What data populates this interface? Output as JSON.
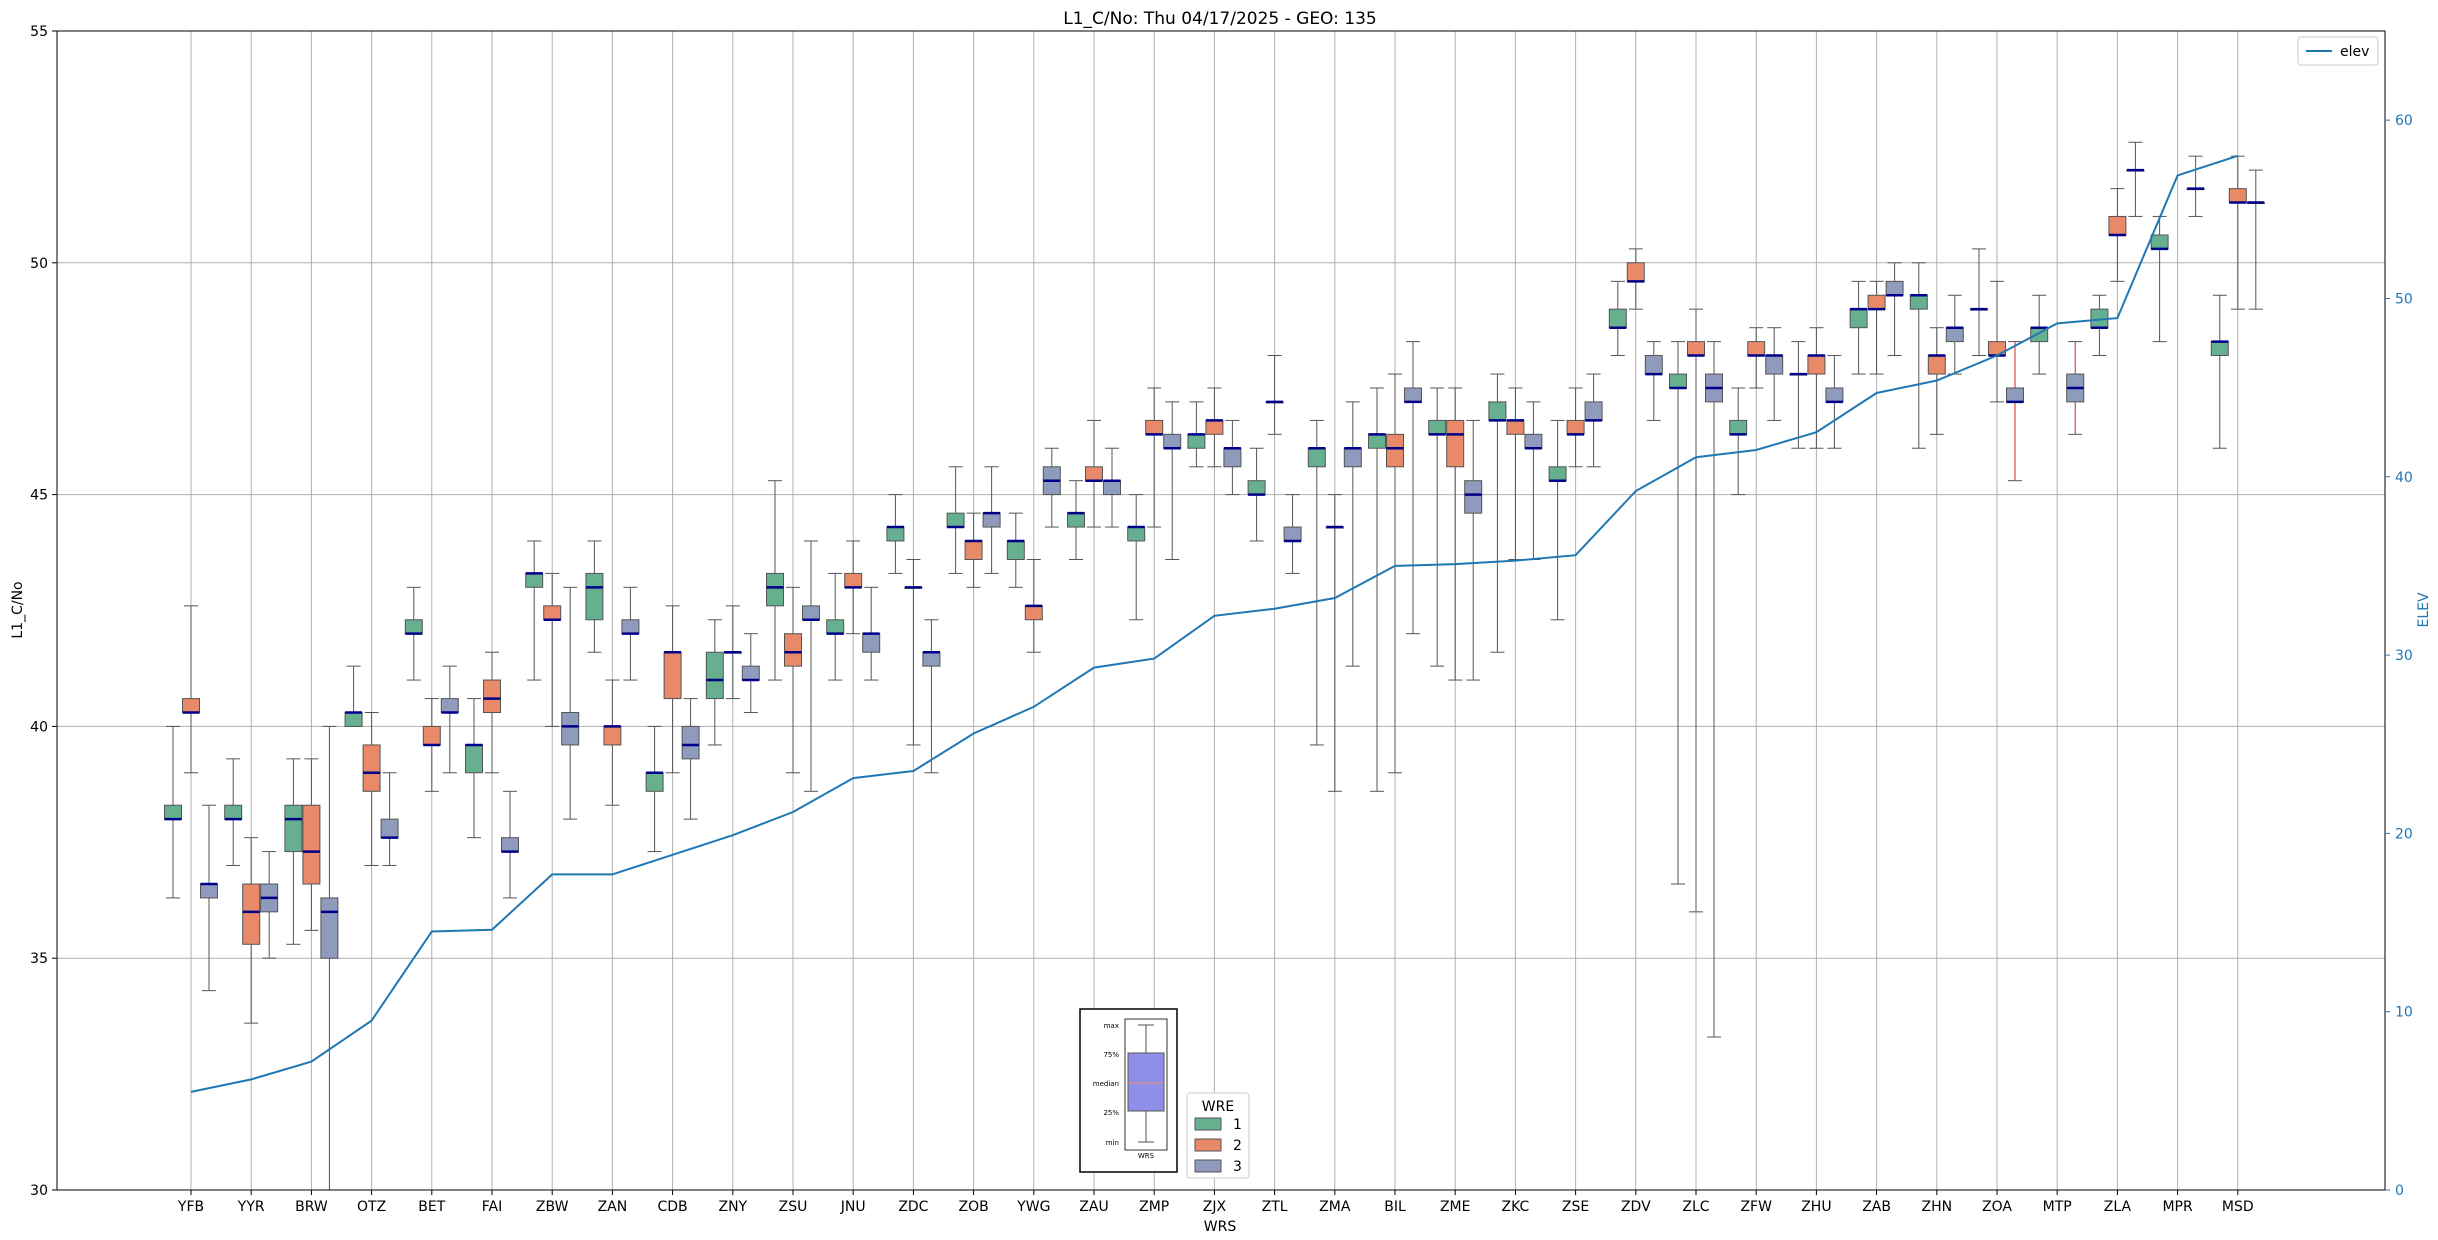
{
  "chart_data": {
    "type": "box",
    "title": "L1_C/No: Thu 04/17/2025 - GEO: 135",
    "xlabel": "WRS",
    "ylabel": "L1_C/No",
    "y2label": "ELEV",
    "ylim": [
      30,
      55
    ],
    "y2lim": [
      0,
      65
    ],
    "yticks": [
      "30",
      "35",
      "40",
      "45",
      "50",
      "55"
    ],
    "y2ticks": [
      "0",
      "10",
      "20",
      "30",
      "40",
      "50",
      "60"
    ],
    "categories": [
      "YFB",
      "YYR",
      "BRW",
      "OTZ",
      "BET",
      "FAI",
      "ZBW",
      "ZAN",
      "CDB",
      "ZNY",
      "ZSU",
      "JNU",
      "ZDC",
      "ZOB",
      "YWG",
      "ZAU",
      "ZMP",
      "ZJX",
      "ZTL",
      "ZMA",
      "BIL",
      "ZME",
      "ZKC",
      "ZSE",
      "ZDV",
      "ZLC",
      "ZFW",
      "ZHU",
      "ZAB",
      "ZHN",
      "ZOA",
      "MTP",
      "ZLA",
      "MPR",
      "MSD"
    ],
    "wre_colors": {
      "1": "#66b08f",
      "2": "#e8896a",
      "3": "#8f9bbd"
    },
    "boxes": [
      {
        "site": "YFB",
        "wre": 1,
        "min": 36.3,
        "q1": 38.0,
        "median": 38.0,
        "q3": 38.3,
        "max": 40.0
      },
      {
        "site": "YFB",
        "wre": 2,
        "min": 39.0,
        "q1": 40.3,
        "median": 40.3,
        "q3": 40.6,
        "max": 42.6
      },
      {
        "site": "YFB",
        "wre": 3,
        "min": 34.3,
        "q1": 36.3,
        "median": 36.6,
        "q3": 36.6,
        "max": 38.3
      },
      {
        "site": "YYR",
        "wre": 1,
        "min": 37.0,
        "q1": 38.0,
        "median": 38.0,
        "q3": 38.3,
        "max": 39.3
      },
      {
        "site": "YYR",
        "wre": 2,
        "min": 33.6,
        "q1": 35.3,
        "median": 36.0,
        "q3": 36.6,
        "max": 37.6
      },
      {
        "site": "YYR",
        "wre": 3,
        "min": 35.0,
        "q1": 36.0,
        "median": 36.3,
        "q3": 36.6,
        "max": 37.3
      },
      {
        "site": "BRW",
        "wre": 1,
        "min": 35.3,
        "q1": 37.3,
        "median": 38.0,
        "q3": 38.3,
        "max": 39.3
      },
      {
        "site": "BRW",
        "wre": 2,
        "min": 35.6,
        "q1": 36.6,
        "median": 37.3,
        "q3": 38.3,
        "max": 39.3
      },
      {
        "site": "BRW",
        "wre": 3,
        "min": 30.0,
        "q1": 35.0,
        "median": 36.0,
        "q3": 36.3,
        "max": 40.0
      },
      {
        "site": "OTZ",
        "wre": 1,
        "min": 40.0,
        "q1": 40.0,
        "median": 40.3,
        "q3": 40.3,
        "max": 41.3
      },
      {
        "site": "OTZ",
        "wre": 2,
        "min": 37.0,
        "q1": 38.6,
        "median": 39.0,
        "q3": 39.6,
        "max": 40.3
      },
      {
        "site": "OTZ",
        "wre": 3,
        "min": 37.0,
        "q1": 37.6,
        "median": 37.6,
        "q3": 38.0,
        "max": 39.0
      },
      {
        "site": "BET",
        "wre": 1,
        "min": 41.0,
        "q1": 42.0,
        "median": 42.0,
        "q3": 42.3,
        "max": 43.0
      },
      {
        "site": "BET",
        "wre": 2,
        "min": 38.6,
        "q1": 39.6,
        "median": 39.6,
        "q3": 40.0,
        "max": 40.6
      },
      {
        "site": "BET",
        "wre": 3,
        "min": 39.0,
        "q1": 40.3,
        "median": 40.3,
        "q3": 40.6,
        "max": 41.3
      },
      {
        "site": "FAI",
        "wre": 1,
        "min": 37.6,
        "q1": 39.0,
        "median": 39.6,
        "q3": 39.6,
        "max": 40.6
      },
      {
        "site": "FAI",
        "wre": 2,
        "min": 39.0,
        "q1": 40.3,
        "median": 40.6,
        "q3": 41.0,
        "max": 41.6
      },
      {
        "site": "FAI",
        "wre": 3,
        "min": 36.3,
        "q1": 37.3,
        "median": 37.3,
        "q3": 37.6,
        "max": 38.6
      },
      {
        "site": "ZBW",
        "wre": 1,
        "min": 41.0,
        "q1": 43.0,
        "median": 43.3,
        "q3": 43.3,
        "max": 44.0
      },
      {
        "site": "ZBW",
        "wre": 2,
        "min": 40.0,
        "q1": 42.3,
        "median": 42.3,
        "q3": 42.6,
        "max": 43.3
      },
      {
        "site": "ZBW",
        "wre": 3,
        "min": 38.0,
        "q1": 39.6,
        "median": 40.0,
        "q3": 40.3,
        "max": 43.0
      },
      {
        "site": "ZAN",
        "wre": 1,
        "min": 41.6,
        "q1": 42.3,
        "median": 43.0,
        "q3": 43.3,
        "max": 44.0
      },
      {
        "site": "ZAN",
        "wre": 2,
        "min": 38.3,
        "q1": 39.6,
        "median": 40.0,
        "q3": 40.0,
        "max": 41.0
      },
      {
        "site": "ZAN",
        "wre": 3,
        "min": 41.0,
        "q1": 42.0,
        "median": 42.0,
        "q3": 42.3,
        "max": 43.0
      },
      {
        "site": "CDB",
        "wre": 1,
        "min": 37.3,
        "q1": 38.6,
        "median": 39.0,
        "q3": 39.0,
        "max": 40.0
      },
      {
        "site": "CDB",
        "wre": 2,
        "min": 39.0,
        "q1": 40.6,
        "median": 41.6,
        "q3": 41.6,
        "max": 42.6
      },
      {
        "site": "CDB",
        "wre": 3,
        "min": 38.0,
        "q1": 39.3,
        "median": 39.6,
        "q3": 40.0,
        "max": 40.6
      },
      {
        "site": "ZNY",
        "wre": 1,
        "min": 39.6,
        "q1": 40.6,
        "median": 41.0,
        "q3": 41.6,
        "max": 42.3
      },
      {
        "site": "ZNY",
        "wre": 2,
        "min": 40.6,
        "q1": 41.6,
        "median": 41.6,
        "q3": 41.6,
        "max": 42.6
      },
      {
        "site": "ZNY",
        "wre": 3,
        "min": 40.3,
        "q1": 41.0,
        "median": 41.0,
        "q3": 41.3,
        "max": 42.0
      },
      {
        "site": "ZSU",
        "wre": 1,
        "min": 41.0,
        "q1": 42.6,
        "median": 43.0,
        "q3": 43.3,
        "max": 45.3
      },
      {
        "site": "ZSU",
        "wre": 2,
        "min": 39.0,
        "q1": 41.3,
        "median": 41.6,
        "q3": 42.0,
        "max": 43.0
      },
      {
        "site": "ZSU",
        "wre": 3,
        "min": 38.6,
        "q1": 42.3,
        "median": 42.3,
        "q3": 42.6,
        "max": 44.0
      },
      {
        "site": "JNU",
        "wre": 1,
        "min": 41.0,
        "q1": 42.0,
        "median": 42.0,
        "q3": 42.3,
        "max": 43.3
      },
      {
        "site": "JNU",
        "wre": 2,
        "min": 42.0,
        "q1": 43.0,
        "median": 43.0,
        "q3": 43.3,
        "max": 44.0
      },
      {
        "site": "JNU",
        "wre": 3,
        "min": 41.0,
        "q1": 41.6,
        "median": 42.0,
        "q3": 42.0,
        "max": 43.0
      },
      {
        "site": "ZDC",
        "wre": 1,
        "min": 43.3,
        "q1": 44.0,
        "median": 44.3,
        "q3": 44.3,
        "max": 45.0
      },
      {
        "site": "ZDC",
        "wre": 2,
        "min": 39.6,
        "q1": 43.0,
        "median": 43.0,
        "q3": 43.0,
        "max": 43.6
      },
      {
        "site": "ZDC",
        "wre": 3,
        "min": 39.0,
        "q1": 41.3,
        "median": 41.6,
        "q3": 41.6,
        "max": 42.3
      },
      {
        "site": "ZOB",
        "wre": 1,
        "min": 43.3,
        "q1": 44.3,
        "median": 44.3,
        "q3": 44.6,
        "max": 45.6
      },
      {
        "site": "ZOB",
        "wre": 2,
        "min": 43.0,
        "q1": 43.6,
        "median": 44.0,
        "q3": 44.0,
        "max": 44.6
      },
      {
        "site": "ZOB",
        "wre": 3,
        "min": 43.3,
        "q1": 44.3,
        "median": 44.6,
        "q3": 44.6,
        "max": 45.6
      },
      {
        "site": "YWG",
        "wre": 1,
        "min": 43.0,
        "q1": 43.6,
        "median": 44.0,
        "q3": 44.0,
        "max": 44.6
      },
      {
        "site": "YWG",
        "wre": 2,
        "min": 41.6,
        "q1": 42.3,
        "median": 42.6,
        "q3": 42.6,
        "max": 43.6
      },
      {
        "site": "YWG",
        "wre": 3,
        "min": 44.3,
        "q1": 45.0,
        "median": 45.3,
        "q3": 45.6,
        "max": 46.0
      },
      {
        "site": "ZAU",
        "wre": 1,
        "min": 43.6,
        "q1": 44.3,
        "median": 44.6,
        "q3": 44.6,
        "max": 45.3
      },
      {
        "site": "ZAU",
        "wre": 2,
        "min": 44.3,
        "q1": 45.3,
        "median": 45.3,
        "q3": 45.6,
        "max": 46.6
      },
      {
        "site": "ZAU",
        "wre": 3,
        "min": 44.3,
        "q1": 45.0,
        "median": 45.3,
        "q3": 45.3,
        "max": 46.0
      },
      {
        "site": "ZMP",
        "wre": 1,
        "min": 42.3,
        "q1": 44.0,
        "median": 44.3,
        "q3": 44.3,
        "max": 45.0
      },
      {
        "site": "ZMP",
        "wre": 2,
        "min": 44.3,
        "q1": 46.3,
        "median": 46.3,
        "q3": 46.6,
        "max": 47.3
      },
      {
        "site": "ZMP",
        "wre": 3,
        "min": 43.6,
        "q1": 46.0,
        "median": 46.0,
        "q3": 46.3,
        "max": 47.0
      },
      {
        "site": "ZJX",
        "wre": 1,
        "min": 45.6,
        "q1": 46.0,
        "median": 46.3,
        "q3": 46.3,
        "max": 47.0
      },
      {
        "site": "ZJX",
        "wre": 2,
        "min": 45.6,
        "q1": 46.3,
        "median": 46.6,
        "q3": 46.6,
        "max": 47.3
      },
      {
        "site": "ZJX",
        "wre": 3,
        "min": 45.0,
        "q1": 45.6,
        "median": 46.0,
        "q3": 46.0,
        "max": 46.6
      },
      {
        "site": "ZTL",
        "wre": 1,
        "min": 44.0,
        "q1": 45.0,
        "median": 45.0,
        "q3": 45.3,
        "max": 46.0
      },
      {
        "site": "ZTL",
        "wre": 2,
        "min": 46.3,
        "q1": 47.0,
        "median": 47.0,
        "q3": 47.0,
        "max": 48.0
      },
      {
        "site": "ZTL",
        "wre": 3,
        "min": 43.3,
        "q1": 44.0,
        "median": 44.0,
        "q3": 44.3,
        "max": 45.0
      },
      {
        "site": "ZMA",
        "wre": 1,
        "min": 39.6,
        "q1": 45.6,
        "median": 46.0,
        "q3": 46.0,
        "max": 46.6
      },
      {
        "site": "ZMA",
        "wre": 2,
        "min": 38.6,
        "q1": 44.3,
        "median": 44.3,
        "q3": 44.3,
        "max": 45.0
      },
      {
        "site": "ZMA",
        "wre": 3,
        "min": 41.3,
        "q1": 45.6,
        "median": 46.0,
        "q3": 46.0,
        "max": 47.0
      },
      {
        "site": "BIL",
        "wre": 1,
        "min": 38.6,
        "q1": 46.0,
        "median": 46.3,
        "q3": 46.3,
        "max": 47.3
      },
      {
        "site": "BIL",
        "wre": 2,
        "min": 39.0,
        "q1": 45.6,
        "median": 46.0,
        "q3": 46.3,
        "max": 47.6
      },
      {
        "site": "BIL",
        "wre": 3,
        "min": 42.0,
        "q1": 47.0,
        "median": 47.0,
        "q3": 47.3,
        "max": 48.3
      },
      {
        "site": "ZME",
        "wre": 1,
        "min": 41.3,
        "q1": 46.3,
        "median": 46.3,
        "q3": 46.6,
        "max": 47.3
      },
      {
        "site": "ZME",
        "wre": 2,
        "min": 41.0,
        "q1": 45.6,
        "median": 46.3,
        "q3": 46.6,
        "max": 47.3
      },
      {
        "site": "ZME",
        "wre": 3,
        "min": 41.0,
        "q1": 44.6,
        "median": 45.0,
        "q3": 45.3,
        "max": 46.6
      },
      {
        "site": "ZKC",
        "wre": 1,
        "min": 41.6,
        "q1": 46.6,
        "median": 46.6,
        "q3": 47.0,
        "max": 47.6
      },
      {
        "site": "ZKC",
        "wre": 2,
        "min": 43.6,
        "q1": 46.3,
        "median": 46.6,
        "q3": 46.6,
        "max": 47.3
      },
      {
        "site": "ZKC",
        "wre": 3,
        "min": 43.6,
        "q1": 46.0,
        "median": 46.0,
        "q3": 46.3,
        "max": 47.0
      },
      {
        "site": "ZSE",
        "wre": 1,
        "min": 42.3,
        "q1": 45.3,
        "median": 45.3,
        "q3": 45.6,
        "max": 46.6
      },
      {
        "site": "ZSE",
        "wre": 2,
        "min": 45.6,
        "q1": 46.3,
        "median": 46.3,
        "q3": 46.6,
        "max": 47.3
      },
      {
        "site": "ZSE",
        "wre": 3,
        "min": 45.6,
        "q1": 46.6,
        "median": 46.6,
        "q3": 47.0,
        "max": 47.6
      },
      {
        "site": "ZDV",
        "wre": 1,
        "min": 48.0,
        "q1": 48.6,
        "median": 48.6,
        "q3": 49.0,
        "max": 49.6
      },
      {
        "site": "ZDV",
        "wre": 2,
        "min": 49.0,
        "q1": 49.6,
        "median": 49.6,
        "q3": 50.0,
        "max": 50.3
      },
      {
        "site": "ZDV",
        "wre": 3,
        "min": 46.6,
        "q1": 47.6,
        "median": 47.6,
        "q3": 48.0,
        "max": 48.3
      },
      {
        "site": "ZLC",
        "wre": 1,
        "min": 36.6,
        "q1": 47.3,
        "median": 47.3,
        "q3": 47.6,
        "max": 48.3
      },
      {
        "site": "ZLC",
        "wre": 2,
        "min": 36.0,
        "q1": 48.0,
        "median": 48.0,
        "q3": 48.3,
        "max": 49.0
      },
      {
        "site": "ZLC",
        "wre": 3,
        "min": 33.3,
        "q1": 47.0,
        "median": 47.3,
        "q3": 47.6,
        "max": 48.3
      },
      {
        "site": "ZFW",
        "wre": 1,
        "min": 45.0,
        "q1": 46.3,
        "median": 46.3,
        "q3": 46.6,
        "max": 47.3
      },
      {
        "site": "ZFW",
        "wre": 2,
        "min": 47.3,
        "q1": 48.0,
        "median": 48.0,
        "q3": 48.3,
        "max": 48.6
      },
      {
        "site": "ZFW",
        "wre": 3,
        "min": 46.6,
        "q1": 47.6,
        "median": 48.0,
        "q3": 48.0,
        "max": 48.6
      },
      {
        "site": "ZHU",
        "wre": 1,
        "min": 46.0,
        "q1": 47.6,
        "median": 47.6,
        "q3": 47.6,
        "max": 48.3
      },
      {
        "site": "ZHU",
        "wre": 2,
        "min": 46.0,
        "q1": 47.6,
        "median": 48.0,
        "q3": 48.0,
        "max": 48.6
      },
      {
        "site": "ZHU",
        "wre": 3,
        "min": 46.0,
        "q1": 47.0,
        "median": 47.0,
        "q3": 47.3,
        "max": 48.0
      },
      {
        "site": "ZAB",
        "wre": 1,
        "min": 47.6,
        "q1": 48.6,
        "median": 49.0,
        "q3": 49.0,
        "max": 49.6
      },
      {
        "site": "ZAB",
        "wre": 2,
        "min": 47.6,
        "q1": 49.0,
        "median": 49.0,
        "q3": 49.3,
        "max": 49.6
      },
      {
        "site": "ZAB",
        "wre": 3,
        "min": 48.0,
        "q1": 49.3,
        "median": 49.3,
        "q3": 49.6,
        "max": 50.0
      },
      {
        "site": "ZHN",
        "wre": 1,
        "min": 46.0,
        "q1": 49.0,
        "median": 49.3,
        "q3": 49.3,
        "max": 50.0
      },
      {
        "site": "ZHN",
        "wre": 2,
        "min": 46.3,
        "q1": 47.6,
        "median": 48.0,
        "q3": 48.0,
        "max": 48.6
      },
      {
        "site": "ZHN",
        "wre": 3,
        "min": 47.6,
        "q1": 48.3,
        "median": 48.6,
        "q3": 48.6,
        "max": 49.3
      },
      {
        "site": "ZOA",
        "wre": 1,
        "min": 48.0,
        "q1": 49.0,
        "median": 49.0,
        "q3": 49.0,
        "max": 50.3
      },
      {
        "site": "ZOA",
        "wre": 2,
        "min": 47.0,
        "q1": 48.0,
        "median": 48.0,
        "q3": 48.3,
        "max": 49.6
      },
      {
        "site": "ZOA",
        "wre": 3,
        "min": 45.3,
        "q1": 47.0,
        "median": 47.0,
        "q3": 47.3,
        "max": 48.3
      },
      {
        "site": "MTP",
        "wre": 1,
        "min": 47.6,
        "q1": 48.3,
        "median": 48.6,
        "q3": 48.6,
        "max": 49.3
      },
      {
        "site": "MTP",
        "wre": 3,
        "min": 46.3,
        "q1": 47.0,
        "median": 47.3,
        "q3": 47.6,
        "max": 48.3
      },
      {
        "site": "ZLA",
        "wre": 1,
        "min": 48.0,
        "q1": 48.6,
        "median": 48.6,
        "q3": 49.0,
        "max": 49.3
      },
      {
        "site": "ZLA",
        "wre": 2,
        "min": 49.6,
        "q1": 50.6,
        "median": 50.6,
        "q3": 51.0,
        "max": 51.6
      },
      {
        "site": "ZLA",
        "wre": 3,
        "min": 51.0,
        "q1": 52.0,
        "median": 52.0,
        "q3": 52.0,
        "max": 52.6
      },
      {
        "site": "MPR",
        "wre": 1,
        "min": 48.3,
        "q1": 50.3,
        "median": 50.3,
        "q3": 50.6,
        "max": 51.0
      },
      {
        "site": "MPR",
        "wre": 3,
        "min": 51.0,
        "q1": 51.6,
        "median": 51.6,
        "q3": 51.6,
        "max": 52.3
      },
      {
        "site": "MSD",
        "wre": 1,
        "min": 46.0,
        "q1": 48.0,
        "median": 48.3,
        "q3": 48.3,
        "max": 49.3
      },
      {
        "site": "MSD",
        "wre": 2,
        "min": 49.0,
        "q1": 51.3,
        "median": 51.3,
        "q3": 51.6,
        "max": 52.3
      },
      {
        "site": "MSD",
        "wre": 3,
        "min": 49.0,
        "q1": 51.3,
        "median": 51.3,
        "q3": 51.3,
        "max": 52.0
      }
    ],
    "elev_series": {
      "name": "elev",
      "values": [
        5.5,
        6.2,
        7.2,
        9.5,
        14.5,
        14.6,
        17.7,
        17.7,
        18.8,
        19.9,
        21.2,
        23.1,
        23.5,
        25.6,
        27.1,
        29.3,
        29.8,
        32.2,
        32.6,
        33.2,
        35.0,
        35.1,
        35.3,
        35.6,
        39.2,
        41.1,
        41.5,
        42.5,
        44.7,
        45.4,
        46.8,
        48.6,
        48.9,
        56.9,
        58.0
      ]
    },
    "legend": {
      "position": "top-right",
      "label": "elev"
    },
    "wre_legend": {
      "position": "bottom-center",
      "title": "WRE",
      "entries": [
        "1",
        "2",
        "3"
      ]
    },
    "inset_key": {
      "labels": [
        "max",
        "75%",
        "median",
        "25%",
        "min"
      ],
      "caption": "WRS"
    }
  }
}
